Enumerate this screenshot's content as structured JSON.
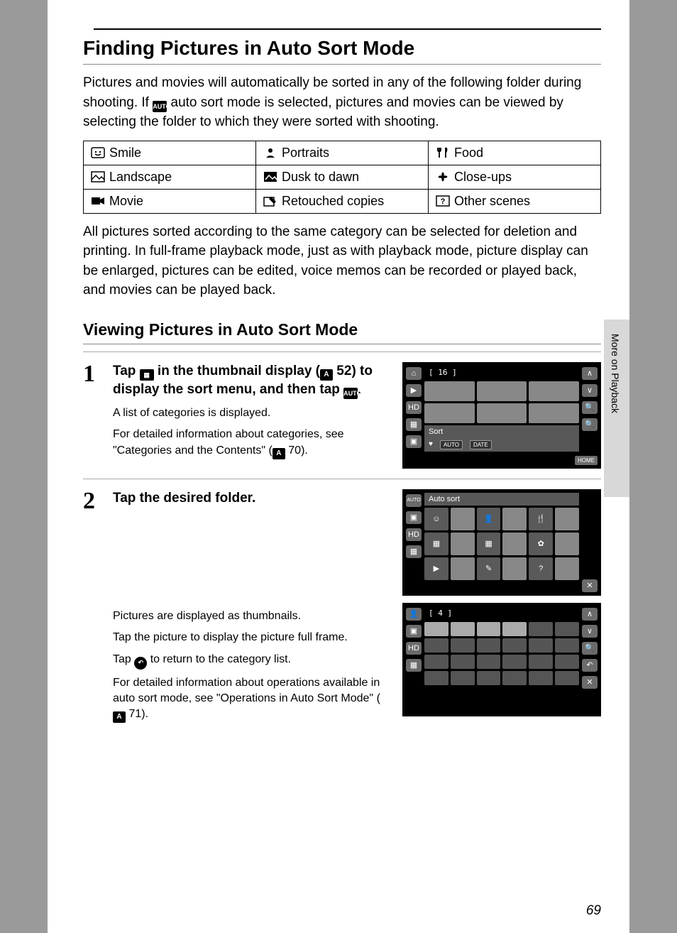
{
  "title": "Finding Pictures in Auto Sort Mode",
  "intro": "Pictures and movies will automatically be sorted in any of the following folder during shooting. If auto sort mode is selected, pictures and movies can be viewed by selecting the folder to which they were sorted with shooting.",
  "folder_table": {
    "rows": [
      [
        {
          "icon": "smile",
          "label": "Smile"
        },
        {
          "icon": "portrait",
          "label": "Portraits"
        },
        {
          "icon": "food",
          "label": "Food"
        }
      ],
      [
        {
          "icon": "landscape",
          "label": "Landscape"
        },
        {
          "icon": "dusk",
          "label": "Dusk to dawn"
        },
        {
          "icon": "closeup",
          "label": "Close-ups"
        }
      ],
      [
        {
          "icon": "movie",
          "label": "Movie"
        },
        {
          "icon": "retouch",
          "label": "Retouched copies"
        },
        {
          "icon": "other",
          "label": "Other scenes"
        }
      ]
    ]
  },
  "after_table": "All pictures sorted according to the same category can be selected for deletion and printing. In full-frame playback mode, just as with playback mode, picture display can be enlarged, pictures can be edited, voice memos can be recorded or played back, and movies can be played back.",
  "subtitle": "Viewing Pictures in Auto Sort Mode",
  "steps": {
    "s1": {
      "num": "1",
      "title_a": "Tap ",
      "title_b": " in the thumbnail display (",
      "ref1": "52",
      "title_c": ") to display the sort menu, and then tap ",
      "title_d": ".",
      "note1": "A list of categories is displayed.",
      "note2": "For detailed information about categories, see \"Categories and the Contents\" (",
      "ref2": "70",
      "note2b": ")."
    },
    "s2": {
      "num": "2",
      "title": "Tap the desired folder.",
      "note1": "Pictures are displayed as thumbnails.",
      "note2": "Tap the picture to display the picture full frame.",
      "note3a": "Tap ",
      "note3b": " to return to the category list.",
      "note4a": "For detailed information about operations available in auto sort mode, see \"Operations in Auto Sort Mode\" (",
      "ref": "71",
      "note4b": ")."
    }
  },
  "screenshots": {
    "ss1": {
      "count_label": "[   16 ]",
      "sort_label": "Sort",
      "tag_auto": "AUTO",
      "tag_date": "DATE",
      "home": "HOME",
      "left_icons": [
        "⌂",
        "▶",
        "HD",
        "▦",
        "▣"
      ],
      "right_icons": [
        "∧",
        "∨",
        "🔍",
        "🔍"
      ],
      "thumb_count": 6
    },
    "ss2": {
      "header": "Auto sort",
      "left_icons": [
        "AUTO",
        "▣",
        "HD",
        "▦"
      ],
      "right_icons": [
        "✕"
      ],
      "categories": [
        "☺",
        "",
        "👤",
        "",
        "🍴",
        "",
        "▦",
        "",
        "▦",
        "",
        "✿",
        "",
        "▶",
        "",
        "✎",
        "",
        "?",
        ""
      ]
    },
    "ss3": {
      "count_label": "[    4 ]",
      "left_icons": [
        "👤",
        "▣",
        "HD",
        "▦"
      ],
      "right_icons": [
        "∧",
        "∨",
        "🔍",
        "↶",
        "✕"
      ],
      "thumb_count": 24,
      "filled": 4
    }
  },
  "side_tab": "More on Playback",
  "page_number": "69",
  "icons_svg": {
    "smile": "☺",
    "portrait": "👤",
    "food": "🍴",
    "landscape": "▦",
    "dusk": "◐",
    "closeup": "✿",
    "movie": "▶",
    "retouch": "✎",
    "other": "?"
  }
}
